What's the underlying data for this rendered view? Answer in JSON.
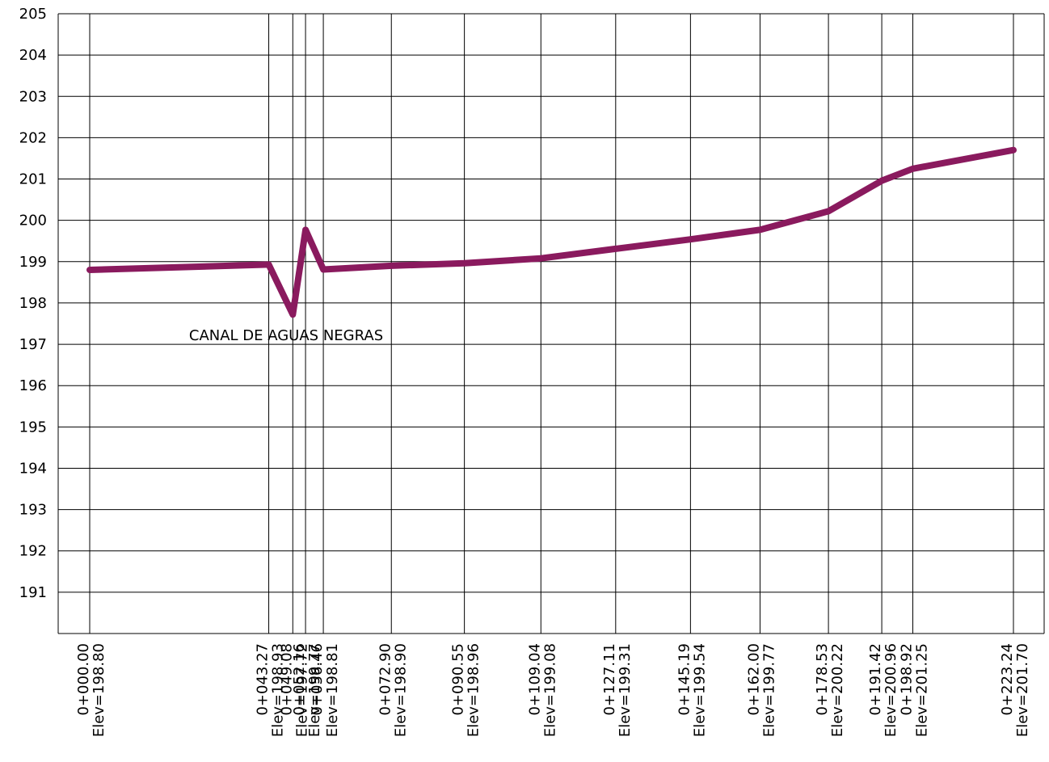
{
  "chart_data": {
    "type": "line",
    "title": "",
    "xlabel": "",
    "ylabel": "",
    "xlim": [
      -8,
      230
    ],
    "ylim": [
      190,
      205
    ],
    "y_ticks": [
      191,
      192,
      193,
      194,
      195,
      196,
      197,
      198,
      199,
      200,
      201,
      202,
      203,
      204,
      205
    ],
    "grid": true,
    "legend": "none",
    "series": [
      {
        "color": "#8a1a5e",
        "points": [
          {
            "x": 0.0,
            "y": 198.8,
            "station": "0+000.00",
            "elev": "Elev=198.80"
          },
          {
            "x": 43.27,
            "y": 198.93,
            "station": "0+043.27",
            "elev": "Elev=198.93"
          },
          {
            "x": 49.08,
            "y": 197.72,
            "station": "0+049.08",
            "elev": "Elev=197.72"
          },
          {
            "x": 52.16,
            "y": 199.77,
            "station": "0+052.16",
            "elev": "Elev=199.77"
          },
          {
            "x": 56.46,
            "y": 198.81,
            "station": "0+056.46",
            "elev": "Elev=198.81"
          },
          {
            "x": 72.9,
            "y": 198.9,
            "station": "0+072.90",
            "elev": "Elev=198.90"
          },
          {
            "x": 90.55,
            "y": 198.96,
            "station": "0+090.55",
            "elev": "Elev=198.96"
          },
          {
            "x": 109.04,
            "y": 199.08,
            "station": "0+109.04",
            "elev": "Elev=199.08"
          },
          {
            "x": 127.11,
            "y": 199.31,
            "station": "0+127.11",
            "elev": "Elev=199.31"
          },
          {
            "x": 145.19,
            "y": 199.54,
            "station": "0+145.19",
            "elev": "Elev=199.54"
          },
          {
            "x": 162.0,
            "y": 199.77,
            "station": "0+162.00",
            "elev": "Elev=199.77"
          },
          {
            "x": 178.53,
            "y": 200.22,
            "station": "0+178.53",
            "elev": "Elev=200.22"
          },
          {
            "x": 191.42,
            "y": 200.96,
            "station": "0+191.42",
            "elev": "Elev=200.96"
          },
          {
            "x": 198.92,
            "y": 201.25,
            "station": "0+198.92",
            "elev": "Elev=201.25"
          },
          {
            "x": 223.24,
            "y": 201.7,
            "station": "0+223.24",
            "elev": "Elev=201.70"
          }
        ]
      }
    ],
    "annotations": [
      {
        "text": "CANAL DE AGUAS NEGRAS",
        "x": 24,
        "y": 197.1
      }
    ]
  }
}
